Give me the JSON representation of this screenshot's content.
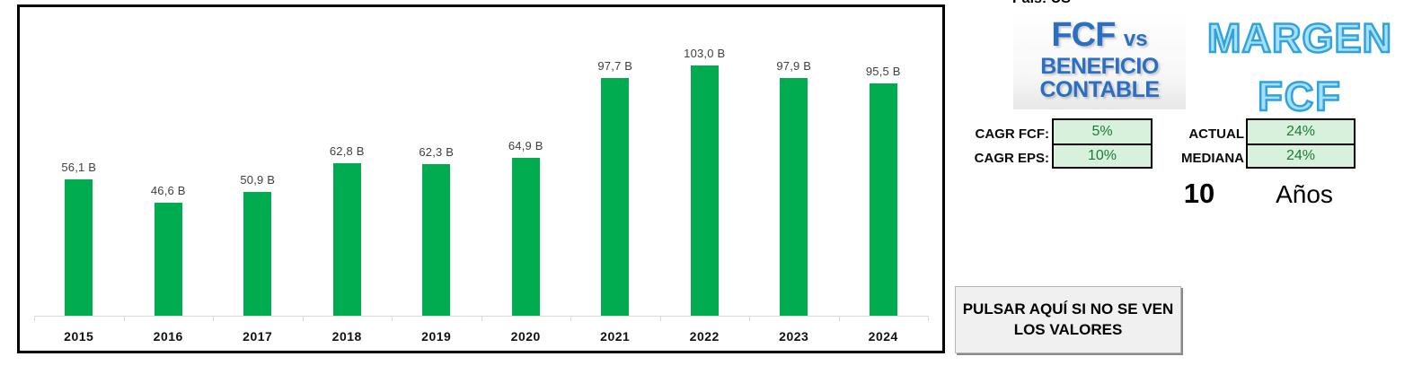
{
  "chart_data": {
    "type": "bar",
    "title": "",
    "categories": [
      "2015",
      "2016",
      "2017",
      "2018",
      "2019",
      "2020",
      "2021",
      "2022",
      "2023",
      "2024"
    ],
    "values": [
      56.1,
      46.6,
      50.9,
      62.8,
      62.3,
      64.9,
      97.7,
      103.0,
      97.9,
      95.5
    ],
    "value_labels": [
      "56,1 B",
      "46,6 B",
      "50,9 B",
      "62,8 B",
      "62,3 B",
      "64,9 B",
      "97,7 B",
      "103,0 B",
      "97,9 B",
      "95,5 B"
    ],
    "xlabel": "",
    "ylabel": "",
    "ylim": [
      0,
      110
    ],
    "grid": false,
    "legend": "none",
    "bar_color": "#00AC4F",
    "axis_line_color": "#d9d9d9"
  },
  "top_note": "Pais: US",
  "logo": {
    "line1": "FCF",
    "vs": "vs",
    "line2": "BENEFICIO",
    "line3": "CONTABLE",
    "color": "#2a6fc2"
  },
  "margen": {
    "line1": "MARGEN",
    "line2": "FCF",
    "fill_color": "#a9e0f8",
    "stroke_color": "#2ea3de"
  },
  "metrics": {
    "cagr_fcf_label": "CAGR FCF:",
    "cagr_fcf_value": "5%",
    "cagr_eps_label": "CAGR EPS:",
    "cagr_eps_value": "10%",
    "actual_label": "ACTUAL",
    "actual_value": "24%",
    "mediana_label": "MEDIANA",
    "mediana_value": "24%",
    "cell_bg_color": "#d7f1dc",
    "cell_text_color": "#1e7b35"
  },
  "period": {
    "value": "10",
    "unit": "Años"
  },
  "button": {
    "line1": "PULSAR AQUÍ SI NO SE VEN",
    "line2": "LOS VALORES"
  }
}
